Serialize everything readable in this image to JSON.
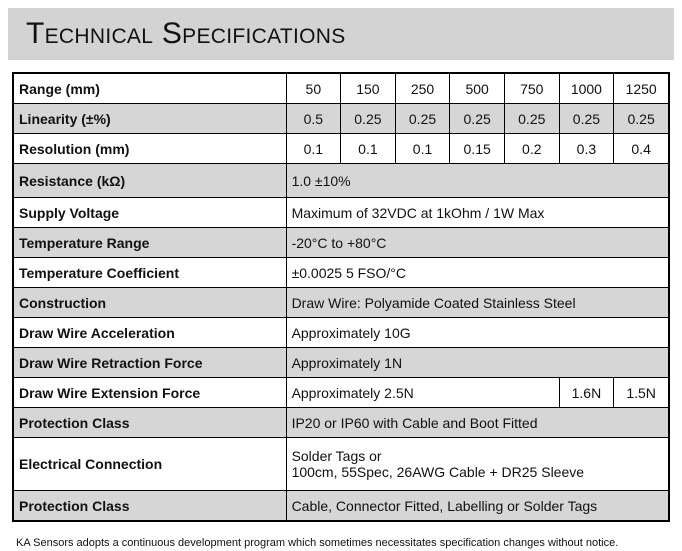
{
  "header": {
    "title": "Technical Specifications"
  },
  "table": {
    "rows": [
      {
        "label": "Range (mm)",
        "cells": [
          "50",
          "150",
          "250",
          "500",
          "750",
          "1000",
          "1250"
        ]
      },
      {
        "label": "Linearity (±%)",
        "cells": [
          "0.5",
          "0.25",
          "0.25",
          "0.25",
          "0.25",
          "0.25",
          "0.25"
        ]
      },
      {
        "label": "Resolution (mm)",
        "cells": [
          "0.1",
          "0.1",
          "0.1",
          "0.15",
          "0.2",
          "0.3",
          "0.4"
        ]
      },
      {
        "label": "Resistance (kΩ)",
        "cells": [
          "1.0 ±10%"
        ]
      },
      {
        "label": "Supply Voltage",
        "cells": [
          "Maximum of 32VDC at 1kOhm / 1W Max"
        ]
      },
      {
        "label": "Temperature Range",
        "cells": [
          "-20°C to +80°C"
        ]
      },
      {
        "label": "Temperature Coefficient",
        "cells": [
          "±0.0025 5 FSO/°C"
        ]
      },
      {
        "label": "Construction",
        "cells": [
          "Draw Wire: Polyamide Coated Stainless Steel"
        ]
      },
      {
        "label": "Draw Wire Acceleration",
        "cells": [
          "Approximately 10G"
        ]
      },
      {
        "label": "Draw Wire Retraction Force",
        "cells": [
          "Approximately 1N"
        ]
      },
      {
        "label": "Draw Wire Extension Force",
        "cells": [
          "Approximately 2.5N",
          "1.6N",
          "1.5N"
        ]
      },
      {
        "label": "Protection Class",
        "cells": [
          "IP20 or IP60 with Cable and Boot Fitted"
        ]
      },
      {
        "label": "Electrical Connection",
        "cells": [
          [
            "Solder Tags or",
            "100cm, 55Spec, 26AWG Cable + DR25 Sleeve"
          ]
        ]
      },
      {
        "label": "Protection Class",
        "cells": [
          "Cable, Connector Fitted, Labelling or Solder Tags"
        ]
      }
    ]
  },
  "footer": {
    "note": "KA Sensors adopts a continuous development program which sometimes necessitates specification changes without notice."
  }
}
